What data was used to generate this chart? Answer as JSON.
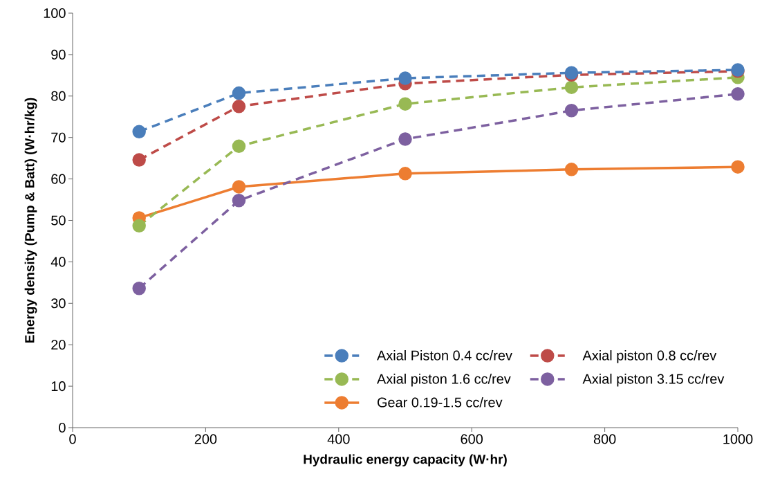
{
  "chart_data": {
    "type": "line",
    "xlabel": "Hydraulic energy capacity (W·hr)",
    "ylabel": "Energy density (Pump & Batt) (W·hr/kg)",
    "xlim": [
      0,
      1000
    ],
    "xticks": [
      0,
      200,
      400,
      600,
      800,
      1000
    ],
    "ylim": [
      0,
      100
    ],
    "yticks": [
      0,
      10,
      20,
      30,
      40,
      50,
      60,
      70,
      80,
      90,
      100
    ],
    "grid": false,
    "legend": "bottom right",
    "marker": "circle",
    "series": [
      {
        "name": "Axial Piston 0.4 cc/rev",
        "color": "#4a7ebb",
        "line_style": "dashed",
        "x": [
          100,
          250,
          500,
          750,
          1000
        ],
        "values": [
          71.4,
          80.7,
          84.3,
          85.6,
          86.3
        ]
      },
      {
        "name": "Axial piston 0.8 cc/rev",
        "color": "#be4b48",
        "line_style": "dashed",
        "x": [
          100,
          250,
          500,
          750,
          1000
        ],
        "values": [
          64.6,
          77.5,
          83.0,
          85.1,
          86.0
        ]
      },
      {
        "name": "Axial piston 1.6 cc/rev",
        "color": "#98b954",
        "line_style": "dashed",
        "x": [
          100,
          250,
          500,
          750,
          1000
        ],
        "values": [
          48.7,
          67.9,
          78.1,
          82.1,
          84.5
        ]
      },
      {
        "name": "Axial piston 3.15 cc/rev",
        "color": "#7d60a0",
        "line_style": "dashed",
        "x": [
          100,
          250,
          500,
          750,
          1000
        ],
        "values": [
          33.6,
          54.8,
          69.6,
          76.5,
          80.5
        ]
      },
      {
        "name": "Gear 0.19-1.5 cc/rev",
        "color": "#ed7d31",
        "line_style": "solid",
        "x": [
          100,
          250,
          500,
          750,
          1000
        ],
        "values": [
          50.6,
          58.1,
          61.3,
          62.3,
          62.9
        ]
      }
    ]
  }
}
